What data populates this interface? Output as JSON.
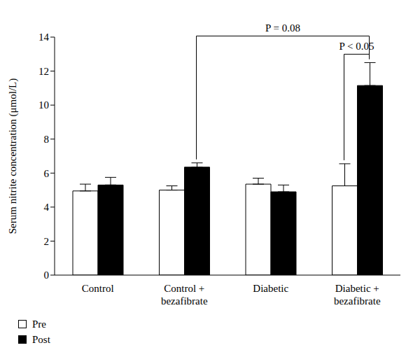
{
  "chart_data": {
    "type": "bar",
    "y_label": "Serum nitrite concentration (μmol/L)",
    "categories": [
      "Control",
      "Control + bezafibrate",
      "Diabetic",
      "Diabetic + bezafibrate"
    ],
    "series": [
      {
        "name": "Pre",
        "color": "#ffffff",
        "values": [
          4.95,
          5.0,
          5.35,
          5.25
        ],
        "errors": [
          0.4,
          0.25,
          0.35,
          1.3
        ]
      },
      {
        "name": "Post",
        "color": "#000000",
        "values": [
          5.3,
          6.35,
          4.9,
          11.15
        ],
        "errors": [
          0.45,
          0.25,
          0.4,
          1.35
        ]
      }
    ],
    "ylim": [
      0,
      14
    ],
    "yticks": [
      0,
      2,
      4,
      6,
      8,
      10,
      12,
      14
    ],
    "grid": false,
    "legend": "bottom left",
    "annotations": [
      {
        "text": "P = 0.08",
        "from": {
          "category": "Control + bezafibrate",
          "series": "Post"
        },
        "to": {
          "category": "Diabetic + bezafibrate",
          "series": "Post"
        }
      },
      {
        "text": "P < 0.05",
        "from": {
          "category": "Diabetic + bezafibrate",
          "series": "Pre"
        },
        "to": {
          "category": "Diabetic + bezafibrate",
          "series": "Post"
        }
      }
    ]
  }
}
